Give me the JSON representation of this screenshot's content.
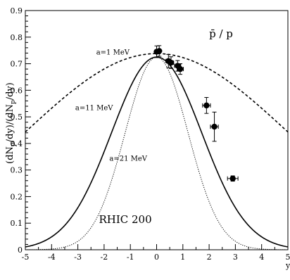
{
  "chart_data": {
    "type": "scatter",
    "xlabel": "y",
    "ylabel": "(dN_{p̄}/dy)/(dN_p/dy)",
    "xlim": [
      -5,
      5
    ],
    "ylim": [
      0,
      0.9
    ],
    "x_ticks": [
      "-5",
      "-4",
      "-3",
      "-2",
      "-1",
      "0",
      "1",
      "2",
      "3",
      "4",
      "5"
    ],
    "y_ticks": [
      "0",
      "0.1",
      "0.2",
      "0.3",
      "0.4",
      "0.5",
      "0.6",
      "0.7",
      "0.8",
      "0.9"
    ],
    "grid": false,
    "legend": "none",
    "annotations": {
      "ratio_label": "p̄ / p",
      "system_label": "RHIC 200",
      "curve_a1": "a=1 MeV",
      "curve_a11": "a=11 MeV",
      "curve_a21": "a=21 MeV"
    },
    "points": [
      {
        "x": 0.0,
        "y": 0.745,
        "yerr": 0.022,
        "xerr": 0.05
      },
      {
        "x": 0.1,
        "y": 0.748,
        "yerr": 0.02,
        "xerr": 0.05
      },
      {
        "x": 0.45,
        "y": 0.71,
        "yerr": 0.025,
        "xerr": 0.1
      },
      {
        "x": 0.55,
        "y": 0.704,
        "yerr": 0.022,
        "xerr": 0.1
      },
      {
        "x": 0.8,
        "y": 0.692,
        "yerr": 0.02,
        "xerr": 0.12
      },
      {
        "x": 0.9,
        "y": 0.68,
        "yerr": 0.02,
        "xerr": 0.12
      },
      {
        "x": 1.9,
        "y": 0.543,
        "yerr": 0.03,
        "xerr": 0.15
      },
      {
        "x": 2.2,
        "y": 0.463,
        "yerr": 0.055,
        "xerr": 0.15
      },
      {
        "x": 2.9,
        "y": 0.268,
        "yerr": 0.01,
        "xerr": 0.2
      }
    ],
    "curves": [
      {
        "label": "a=1 MeV",
        "style": "dashed",
        "peak": 0.738,
        "sigma": 4.95
      },
      {
        "label": "a=11 MeV",
        "style": "solid",
        "peak": 0.725,
        "sigma": 1.72
      },
      {
        "label": "a=21 MeV",
        "style": "dotted",
        "peak": 0.725,
        "sigma": 1.2
      }
    ]
  }
}
